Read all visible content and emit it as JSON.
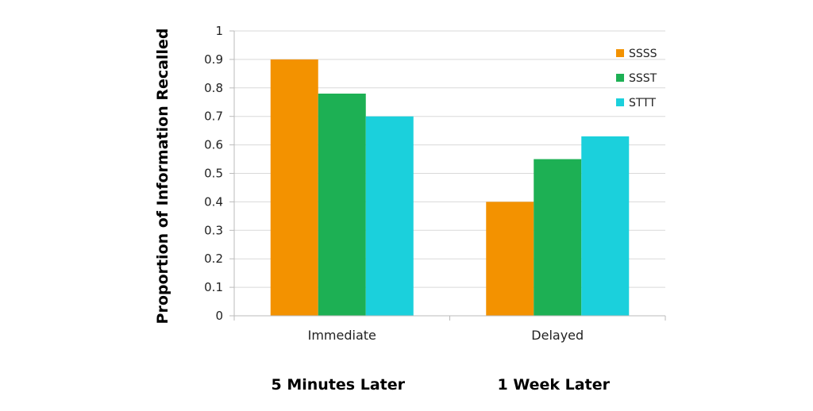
{
  "chart_data": {
    "type": "bar",
    "categories": [
      "Immediate",
      "Delayed"
    ],
    "category_sublabels": [
      "5 Minutes Later",
      "1 Week Later"
    ],
    "series": [
      {
        "name": "SSSS",
        "color": "#f39200",
        "values": [
          0.9,
          0.4
        ]
      },
      {
        "name": "SSST",
        "color": "#1db054",
        "values": [
          0.78,
          0.55
        ]
      },
      {
        "name": "STTT",
        "color": "#1bd0dc",
        "values": [
          0.7,
          0.63
        ]
      }
    ],
    "ylabel": "Proportion of Information Recalled",
    "xlabel": "",
    "ylim": [
      0,
      1
    ],
    "yticks": [
      "0",
      "0.1",
      "0.2",
      "0.3",
      "0.4",
      "0.5",
      "0.6",
      "0.7",
      "0.8",
      "0.9",
      "1"
    ],
    "grid": true,
    "legend_position": "top-right"
  }
}
